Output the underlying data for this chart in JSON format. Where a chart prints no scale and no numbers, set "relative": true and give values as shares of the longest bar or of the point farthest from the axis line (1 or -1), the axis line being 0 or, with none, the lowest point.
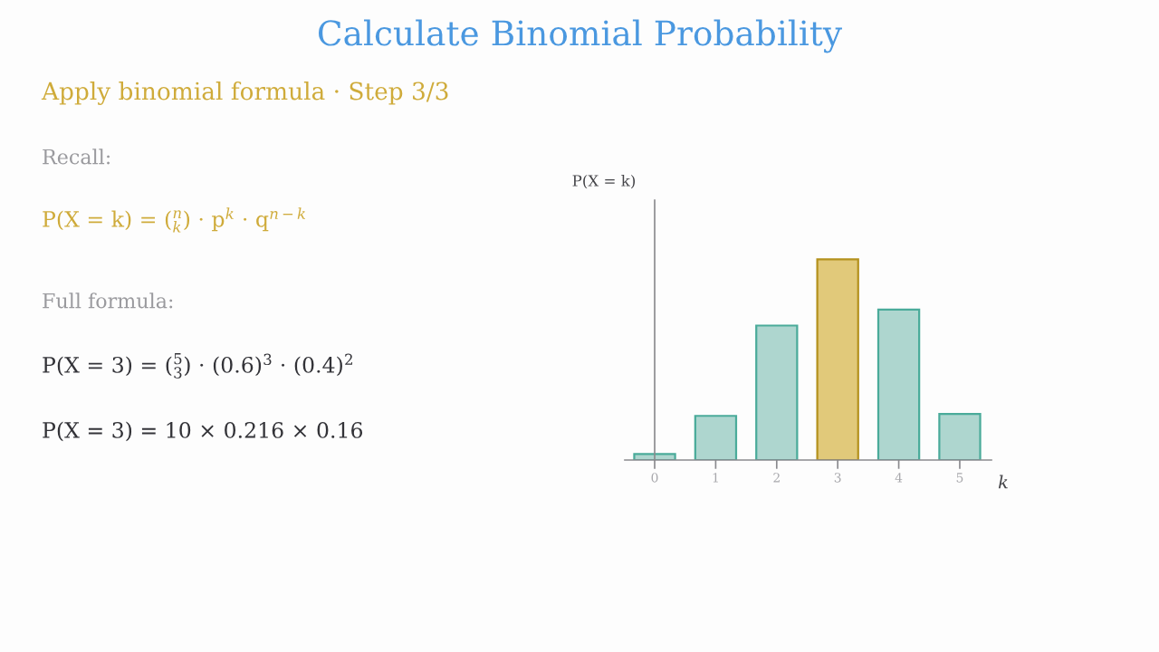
{
  "chart_data": {
    "type": "bar",
    "title": "Calculate Binomial Probability",
    "subtitle": "Apply binomial formula · Step 3/3",
    "annotations": [
      "Recall:",
      "P(X = k) = ($^{n}$$_{k}$) · p$^{k}$ · q$^{n−k}$",
      "Full formula:",
      "P(X = 3) = ($^{5}$$_{3}$) · (0.6)$^{3}$ · (0.4)$^{2}$",
      "P(X = 3) = 10 × 0.216 × 0.16"
    ],
    "xlabel": "k",
    "ylabel": "P(X = k)",
    "categories": [
      "0",
      "1",
      "2",
      "3",
      "4",
      "5"
    ],
    "values": [
      0.03,
      0.22,
      0.67,
      1,
      0.75,
      0.23
    ],
    "colors": [
      "#aed6cf",
      "#aed6cf",
      "#aed6cf",
      "#e1c97a",
      "#aed6cf",
      "#aed6cf"
    ],
    "relative": true
  }
}
